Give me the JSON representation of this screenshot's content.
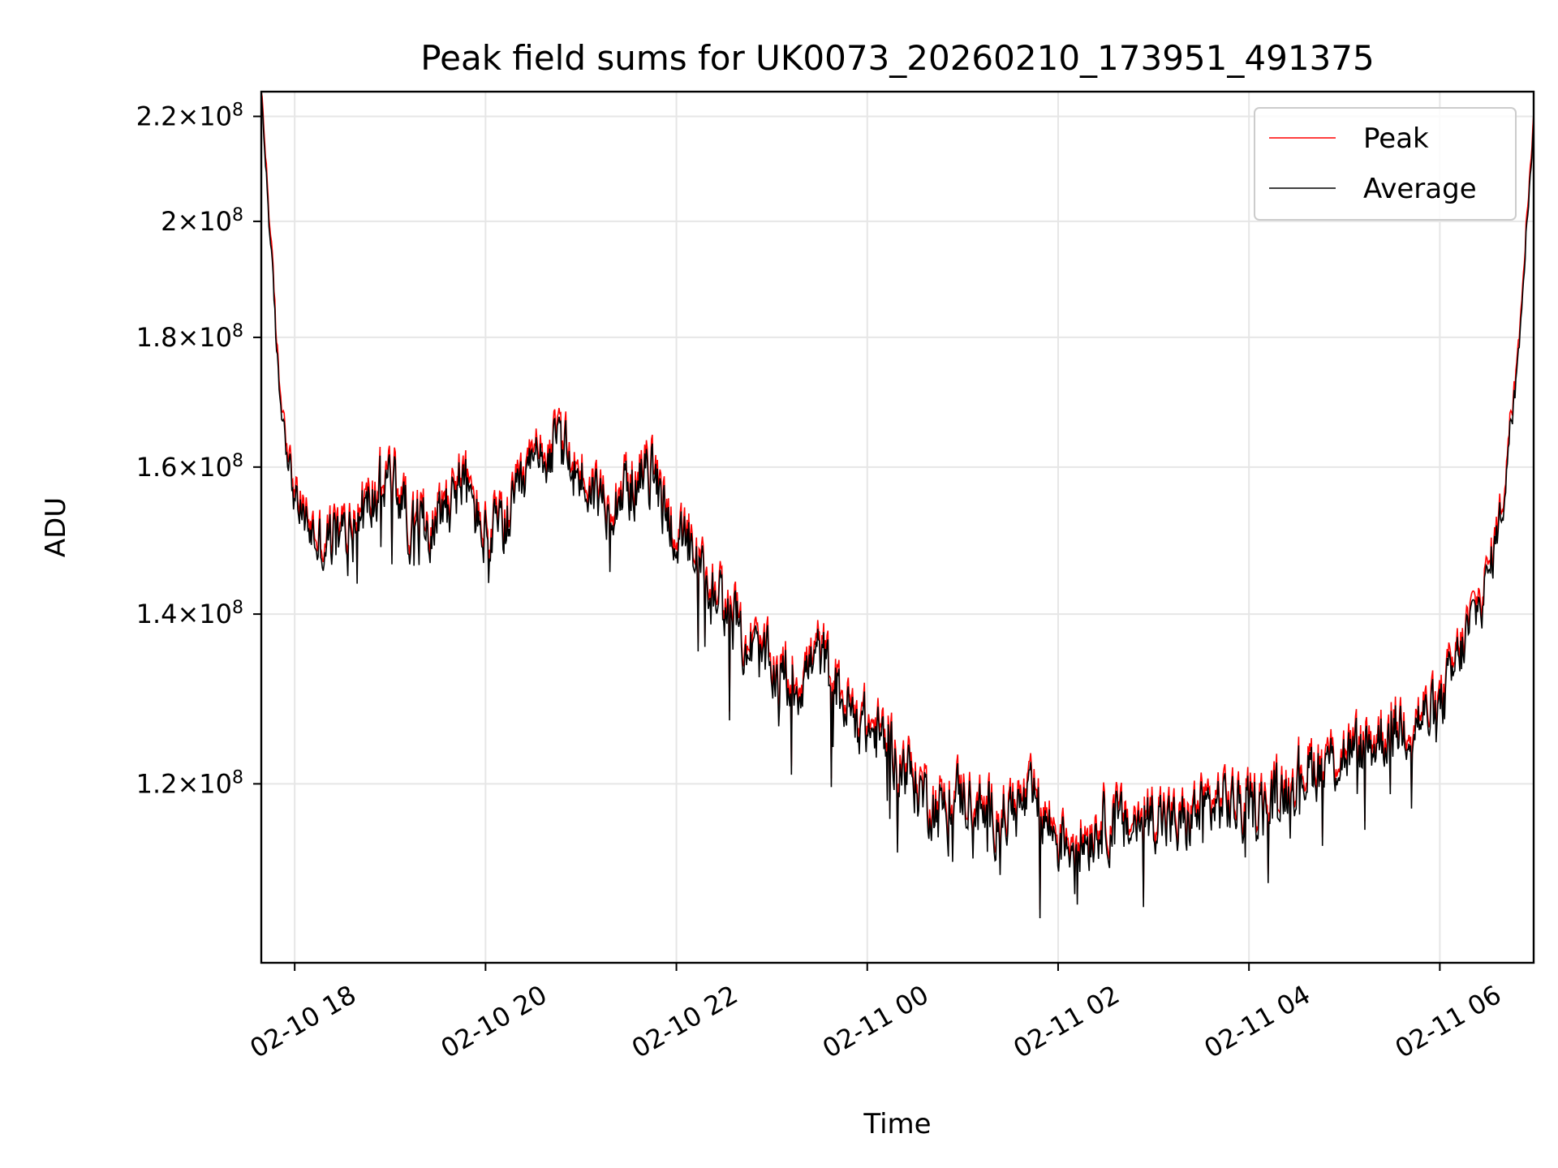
{
  "chart_data": {
    "type": "line",
    "title": "Peak field sums for UK0073_20260210_173951_491375",
    "xlabel": "Time",
    "ylabel": "ADU",
    "y_scale": "log",
    "x_range": [
      "2026-02-10 17:39",
      "2026-02-11 06:59"
    ],
    "ylim": [
      102000000,
      225000000
    ],
    "x_ticks": [
      {
        "value": "2026-02-10 18:00",
        "label": "02-10 18"
      },
      {
        "value": "2026-02-10 20:00",
        "label": "02-10 20"
      },
      {
        "value": "2026-02-10 22:00",
        "label": "02-10 22"
      },
      {
        "value": "2026-02-11 00:00",
        "label": "02-11 00"
      },
      {
        "value": "2026-02-11 02:00",
        "label": "02-11 02"
      },
      {
        "value": "2026-02-11 04:00",
        "label": "02-11 04"
      },
      {
        "value": "2026-02-11 06:00",
        "label": "02-11 06"
      }
    ],
    "y_ticks": [
      {
        "value": 120000000,
        "mantissa": "1.2",
        "exponent": "8"
      },
      {
        "value": 140000000,
        "mantissa": "1.4",
        "exponent": "8"
      },
      {
        "value": 160000000,
        "mantissa": "1.6",
        "exponent": "8"
      },
      {
        "value": 180000000,
        "mantissa": "1.8",
        "exponent": "8"
      },
      {
        "value": 200000000,
        "mantissa": "2",
        "exponent": "8"
      },
      {
        "value": 220000000,
        "mantissa": "2.2",
        "exponent": "8"
      }
    ],
    "grid": true,
    "legend_position": "top-right",
    "series": [
      {
        "name": "Peak",
        "color": "#ff0000",
        "offset_factor": 1.008
      },
      {
        "name": "Average",
        "color": "#000000"
      }
    ],
    "x": [
      "2026-02-10 17:39",
      "2026-02-10 17:45",
      "2026-02-10 17:50",
      "2026-02-10 18:00",
      "2026-02-10 18:15",
      "2026-02-10 18:30",
      "2026-02-10 18:45",
      "2026-02-10 19:00",
      "2026-02-10 19:15",
      "2026-02-10 19:30",
      "2026-02-10 19:45",
      "2026-02-10 20:00",
      "2026-02-10 20:15",
      "2026-02-10 20:30",
      "2026-02-10 20:45",
      "2026-02-10 21:00",
      "2026-02-10 21:15",
      "2026-02-10 21:30",
      "2026-02-10 21:45",
      "2026-02-10 22:00",
      "2026-02-10 22:15",
      "2026-02-10 22:30",
      "2026-02-10 22:45",
      "2026-02-10 23:00",
      "2026-02-10 23:15",
      "2026-02-10 23:30",
      "2026-02-10 23:45",
      "2026-02-11 00:00",
      "2026-02-11 00:15",
      "2026-02-11 00:30",
      "2026-02-11 00:45",
      "2026-02-11 01:00",
      "2026-02-11 01:15",
      "2026-02-11 01:30",
      "2026-02-11 01:45",
      "2026-02-11 02:00",
      "2026-02-11 02:15",
      "2026-02-11 02:30",
      "2026-02-11 02:45",
      "2026-02-11 03:00",
      "2026-02-11 03:15",
      "2026-02-11 03:30",
      "2026-02-11 03:45",
      "2026-02-11 04:00",
      "2026-02-11 04:15",
      "2026-02-11 04:30",
      "2026-02-11 04:45",
      "2026-02-11 05:00",
      "2026-02-11 05:15",
      "2026-02-11 05:30",
      "2026-02-11 05:45",
      "2026-02-11 06:00",
      "2026-02-11 06:15",
      "2026-02-11 06:30",
      "2026-02-11 06:40",
      "2026-02-11 06:50",
      "2026-02-11 06:59"
    ],
    "y": [
      224000000,
      195000000,
      172000000,
      155000000,
      149000000,
      150000000,
      154000000,
      159000000,
      151000000,
      153000000,
      158000000,
      150000000,
      152000000,
      160000000,
      163000000,
      158000000,
      155000000,
      157000000,
      159000000,
      150000000,
      145000000,
      141000000,
      136000000,
      133000000,
      131000000,
      135000000,
      129000000,
      126000000,
      124000000,
      120000000,
      117000000,
      119000000,
      116000000,
      117000000,
      118000000,
      114000000,
      114000000,
      116000000,
      115000000,
      117000000,
      115000000,
      117000000,
      118000000,
      117000000,
      118000000,
      121000000,
      122000000,
      123000000,
      124000000,
      126000000,
      127000000,
      128000000,
      136000000,
      144000000,
      155000000,
      180000000,
      218000000
    ],
    "noise_amplitude_fraction": 0.045
  }
}
